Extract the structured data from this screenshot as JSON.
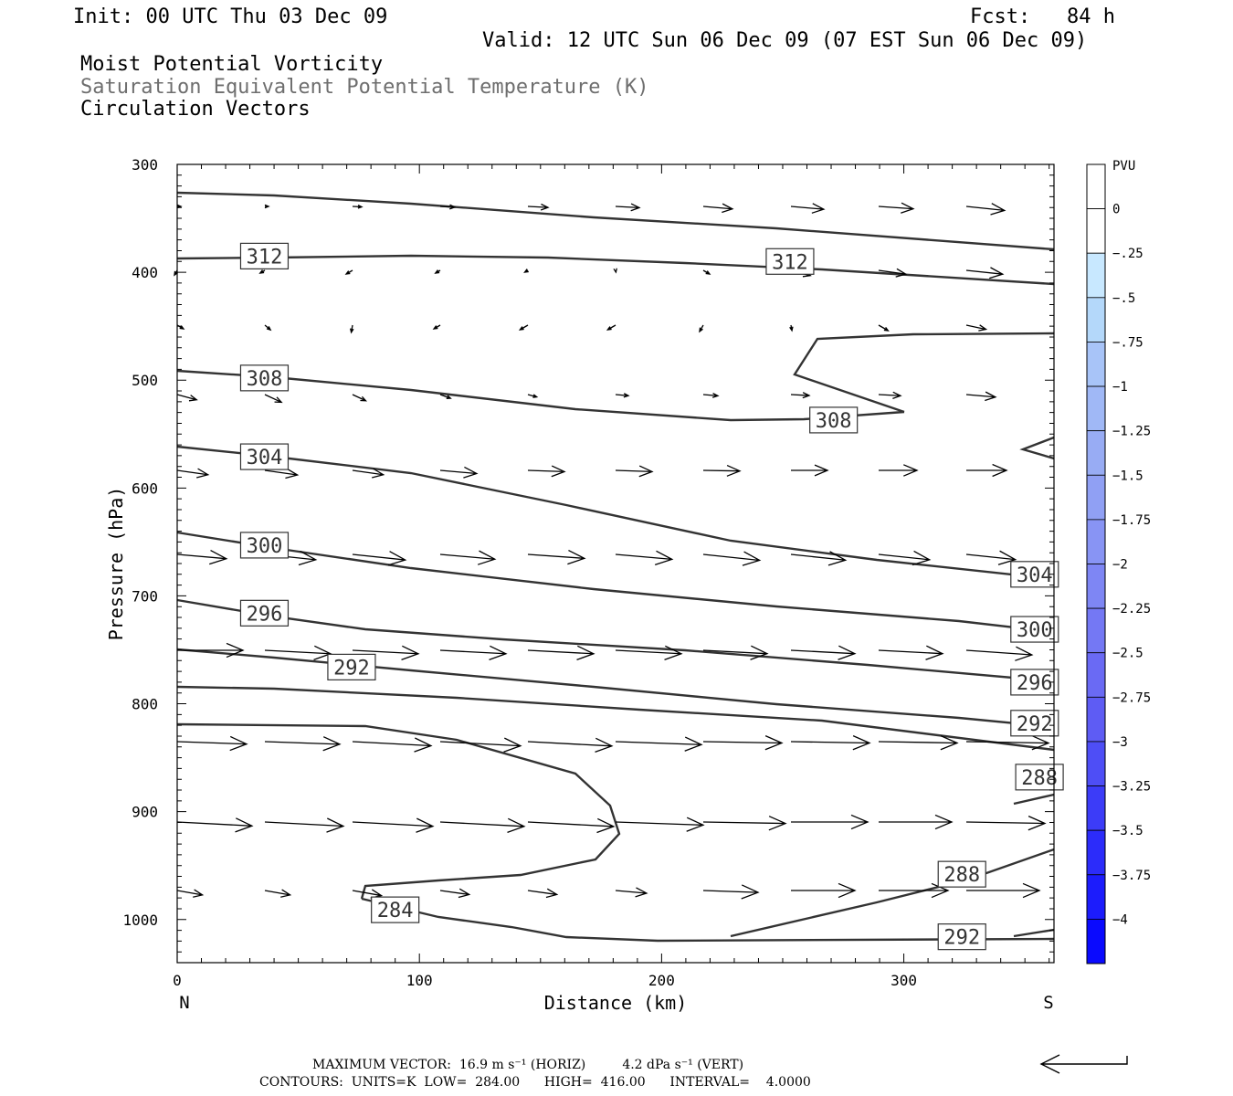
{
  "header": {
    "init": "Init: 00 UTC Thu 03 Dec 09",
    "fcst": "Fcst:   84 h",
    "valid": "Valid: 12 UTC Sun 06 Dec 09 (07 EST Sun 06 Dec 09)",
    "line1": "Moist Potential Vorticity",
    "line2": "Saturation Equivalent Potential Temperature (K)",
    "line3": "Circulation Vectors"
  },
  "footer": {
    "max_vector": "MAXIMUM VECTOR:  16.9 m s⁻¹ (HORIZ)         4.2 dPa s⁻¹ (VERT)",
    "contours": "CONTOURS:  UNITS=K  LOW=  284.00      HIGH=  416.00      INTERVAL=    4.0000"
  },
  "chart_data": {
    "type": "contour",
    "xlabel": "Distance (km)",
    "ylabel": "Pressure (hPa)",
    "x_end_labels": {
      "left": "N",
      "right": "S"
    },
    "xlim": [
      0,
      362
    ],
    "ylim": [
      1040,
      300
    ],
    "xticks": [
      "0",
      "100",
      "200",
      "300"
    ],
    "yticks": [
      "300",
      "400",
      "500",
      "600",
      "700",
      "800",
      "900",
      "1000"
    ],
    "colorbar": {
      "unit": "PVU",
      "labels": [
        "0",
        "-.25",
        "-.5",
        "-.75",
        "-1",
        "-1.25",
        "-1.5",
        "-1.75",
        "-2",
        "-2.25",
        "-2.5",
        "-2.75",
        "-3",
        "-3.25",
        "-3.5",
        "-3.75",
        "-4"
      ],
      "colors": [
        "#ffffff",
        "#ffffff",
        "#c8e8ff",
        "#b4d8fa",
        "#a8c4f8",
        "#a0b8f6",
        "#98acf4",
        "#90a0f4",
        "#8894f4",
        "#7e86f4",
        "#7478f4",
        "#6a6af4",
        "#5e5cf4",
        "#4e4ef6",
        "#3c3cf8",
        "#2c2cfa",
        "#1c1cfc",
        "#0a0afe"
      ]
    },
    "contour_labels": [
      {
        "text": "312",
        "x": 36,
        "p": 385
      },
      {
        "text": "312",
        "x": 253,
        "p": 390
      },
      {
        "text": "308",
        "x": 36,
        "p": 498
      },
      {
        "text": "308",
        "x": 271,
        "p": 537
      },
      {
        "text": "304",
        "x": 36,
        "p": 571
      },
      {
        "text": "304",
        "x": 354,
        "p": 680
      },
      {
        "text": "300",
        "x": 36,
        "p": 653
      },
      {
        "text": "300",
        "x": 354,
        "p": 731
      },
      {
        "text": "296",
        "x": 36,
        "p": 716
      },
      {
        "text": "296",
        "x": 354,
        "p": 780
      },
      {
        "text": "292",
        "x": 72,
        "p": 766
      },
      {
        "text": "292",
        "x": 354,
        "p": 818
      },
      {
        "text": "288",
        "x": 356,
        "p": 868
      },
      {
        "text": "288",
        "x": 324,
        "p": 958
      },
      {
        "text": "284",
        "x": 90,
        "p": 991
      },
      {
        "text": "292",
        "x": 324,
        "p": 1016
      }
    ]
  }
}
